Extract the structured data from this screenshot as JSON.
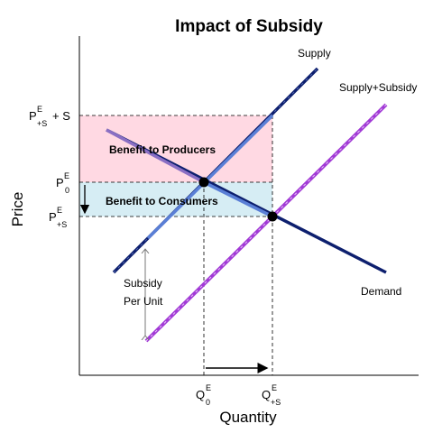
{
  "title": "Impact of Subsidy",
  "axes": {
    "x_label": "Quantity",
    "y_label": "Price"
  },
  "curves": {
    "supply": "Supply",
    "supply_subsidy": "Supply+Subsidy",
    "demand": "Demand"
  },
  "regions": {
    "producers": "Benefit to Producers",
    "consumers": "Benefit to Consumers"
  },
  "annotation": {
    "line1": "Subsidy",
    "line2": "Per Unit"
  },
  "price_ticks": {
    "ps_plus_s": {
      "base": "P",
      "sup": "E",
      "sub": "+S",
      "suffix": "+ S"
    },
    "p0": {
      "base": "P",
      "sup": "E",
      "sub": "0"
    },
    "ps": {
      "base": "P",
      "sup": "E",
      "sub": "+S"
    }
  },
  "quantity_ticks": {
    "q0": {
      "base": "Q",
      "sup": "E",
      "sub": "0"
    },
    "qs": {
      "base": "Q",
      "sup": "E",
      "sub": "+S"
    }
  },
  "colors": {
    "supply": "#0d1f6e",
    "supply_subsidy": "#a23bd6",
    "demand": "#0d1f6e",
    "producer_region": "#ffd9e3",
    "consumer_region": "#d6edf4",
    "overlap_supply": "#5a7fd6",
    "overlap_demand": "#8a6fc4"
  }
}
